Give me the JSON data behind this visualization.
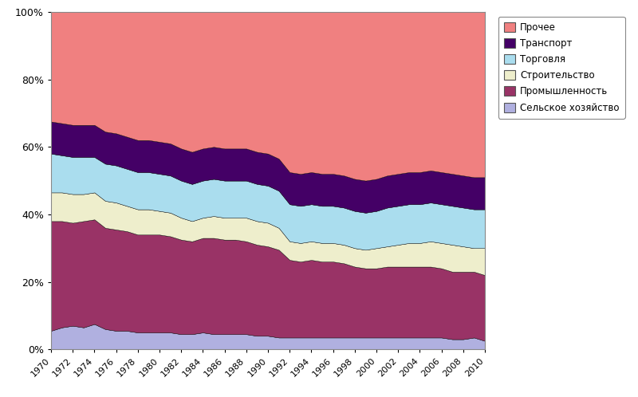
{
  "years": [
    1970,
    1971,
    1972,
    1973,
    1974,
    1975,
    1976,
    1977,
    1978,
    1979,
    1980,
    1981,
    1982,
    1983,
    1984,
    1985,
    1986,
    1987,
    1988,
    1989,
    1990,
    1991,
    1992,
    1993,
    1994,
    1995,
    1996,
    1997,
    1998,
    1999,
    2000,
    2001,
    2002,
    2003,
    2004,
    2005,
    2006,
    2007,
    2008,
    2009,
    2010
  ],
  "series": {
    "Сельское хозяйство": [
      5.5,
      6.5,
      7.0,
      6.5,
      7.5,
      6.0,
      5.5,
      5.5,
      5.0,
      5.0,
      5.0,
      5.0,
      4.5,
      4.5,
      5.0,
      4.5,
      4.5,
      4.5,
      4.5,
      4.0,
      4.0,
      3.5,
      3.5,
      3.5,
      3.5,
      3.5,
      3.5,
      3.5,
      3.5,
      3.5,
      3.5,
      3.5,
      3.5,
      3.5,
      3.5,
      3.5,
      3.5,
      3.0,
      3.0,
      3.5,
      2.5
    ],
    "Промышленность": [
      32.5,
      31.5,
      30.5,
      31.5,
      31.0,
      30.0,
      30.0,
      29.5,
      29.0,
      29.0,
      29.0,
      28.5,
      28.0,
      27.5,
      28.0,
      28.5,
      28.0,
      28.0,
      27.5,
      27.0,
      26.5,
      26.0,
      23.0,
      22.5,
      23.0,
      22.5,
      22.5,
      22.0,
      21.0,
      20.5,
      20.5,
      21.0,
      21.0,
      21.0,
      21.0,
      21.0,
      20.5,
      20.0,
      20.0,
      19.5,
      19.5
    ],
    "Строительство": [
      8.5,
      8.5,
      8.5,
      8.0,
      8.0,
      8.0,
      8.0,
      7.5,
      7.5,
      7.5,
      7.0,
      7.0,
      6.5,
      6.0,
      6.0,
      6.5,
      6.5,
      6.5,
      7.0,
      7.0,
      7.0,
      6.5,
      5.5,
      5.5,
      5.5,
      5.5,
      5.5,
      5.5,
      5.5,
      5.5,
      6.0,
      6.0,
      6.5,
      7.0,
      7.0,
      7.5,
      7.5,
      8.0,
      7.5,
      7.0,
      8.0
    ],
    "Торговля": [
      11.5,
      11.0,
      11.0,
      11.0,
      10.5,
      11.0,
      11.0,
      11.0,
      11.0,
      11.0,
      11.0,
      11.0,
      11.0,
      11.0,
      11.0,
      11.0,
      11.0,
      11.0,
      11.0,
      11.0,
      11.0,
      11.0,
      11.0,
      11.0,
      11.0,
      11.0,
      11.0,
      11.0,
      11.0,
      11.0,
      11.0,
      11.5,
      11.5,
      11.5,
      11.5,
      11.5,
      11.5,
      11.5,
      11.5,
      11.5,
      11.5
    ],
    "Транспорт": [
      9.5,
      9.5,
      9.5,
      9.5,
      9.5,
      9.5,
      9.5,
      9.5,
      9.5,
      9.5,
      9.5,
      9.5,
      9.5,
      9.5,
      9.5,
      9.5,
      9.5,
      9.5,
      9.5,
      9.5,
      9.5,
      9.5,
      9.5,
      9.5,
      9.5,
      9.5,
      9.5,
      9.5,
      9.5,
      9.5,
      9.5,
      9.5,
      9.5,
      9.5,
      9.5,
      9.5,
      9.5,
      9.5,
      9.5,
      9.5,
      9.5
    ],
    "Прочее": [
      32.5,
      33.0,
      33.5,
      33.5,
      33.5,
      35.5,
      36.0,
      37.0,
      38.0,
      38.0,
      38.5,
      39.0,
      40.5,
      41.5,
      40.5,
      40.0,
      40.5,
      40.5,
      40.5,
      41.5,
      42.0,
      43.5,
      47.5,
      48.0,
      47.5,
      48.0,
      48.0,
      48.5,
      49.5,
      50.0,
      49.5,
      48.5,
      48.0,
      47.5,
      47.5,
      47.0,
      47.5,
      48.0,
      48.5,
      49.0,
      49.0
    ]
  },
  "colors": {
    "Сельское хозяйство": "#b0b0e0",
    "Промышленность": "#993366",
    "Строительство": "#eeeecc",
    "Торговля": "#aaddee",
    "Транспорт": "#440066",
    "Прочее": "#f08080"
  },
  "legend_order": [
    "Прочее",
    "Транспорт",
    "Торговля",
    "Строительство",
    "Промышленность",
    "Сельское хозяйство"
  ],
  "stack_order": [
    "Сельское хозяйство",
    "Промышленность",
    "Строительство",
    "Торговля",
    "Транспорт",
    "Прочее"
  ],
  "ytick_labels": [
    "0%",
    "20%",
    "40%",
    "60%",
    "80%",
    "100%"
  ],
  "yticks": [
    0,
    20,
    40,
    60,
    80,
    100
  ],
  "figsize": [
    8.0,
    4.98
  ],
  "dpi": 100,
  "bg_color": "#f0f0f0"
}
